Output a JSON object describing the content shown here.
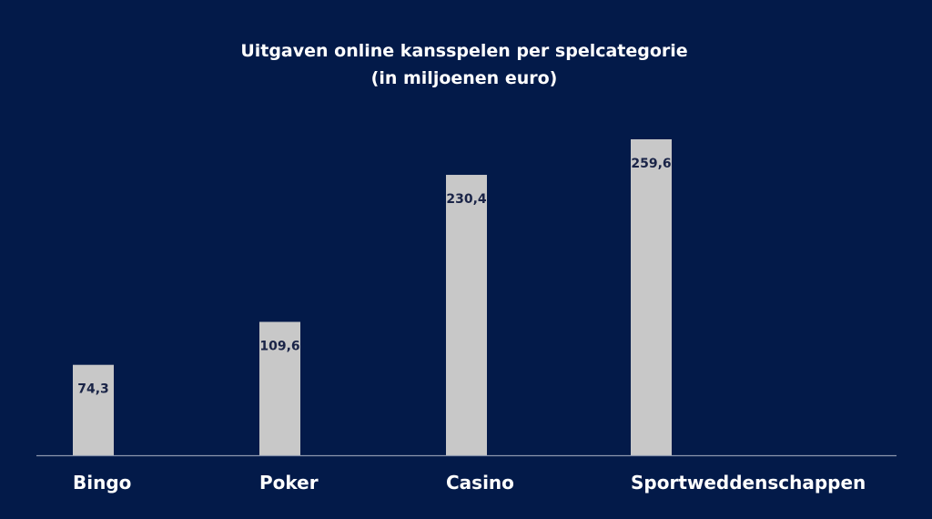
{
  "colors": {
    "background": "#031a49",
    "bar": "#c8c8c8",
    "axis": "#8c96ae",
    "title": "#ffffff",
    "category_label": "#ffffff",
    "value_label": "#1a2447"
  },
  "chart_data": {
    "type": "bar",
    "title": "Uitgaven online kansspelen per spelcategorie",
    "subtitle": "(in miljoenen euro)",
    "xlabel": "",
    "ylabel": "",
    "ylim": [
      0,
      265
    ],
    "grid": false,
    "categories": [
      "Bingo",
      "Poker",
      "Casino",
      "Sportweddenschappen"
    ],
    "values": [
      74.3,
      109.6,
      230.4,
      259.6
    ],
    "value_labels": [
      "74,3",
      "109,6",
      "230,4",
      "259,6"
    ]
  }
}
